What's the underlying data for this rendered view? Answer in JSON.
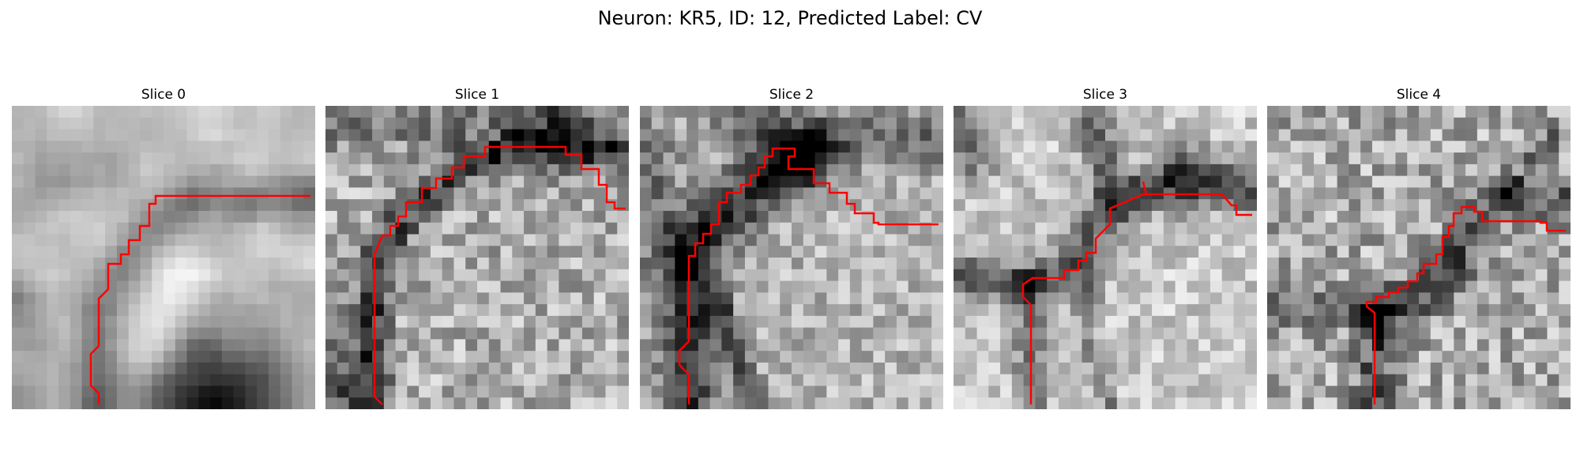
{
  "figure": {
    "title": "Neuron: KR5, ID: 12, Predicted Label: CV"
  },
  "colors": {
    "trace": "#ff0000",
    "background": "#ffffff"
  },
  "panels": [
    {
      "title": "Slice 0",
      "image": "grayscale microscopy patch with membrane trace"
    },
    {
      "title": "Slice 1",
      "image": "grayscale microscopy patch with membrane trace"
    },
    {
      "title": "Slice 2",
      "image": "grayscale microscopy patch with membrane trace"
    },
    {
      "title": "Slice 3",
      "image": "grayscale microscopy patch with membrane trace"
    },
    {
      "title": "Slice 4",
      "image": "grayscale microscopy patch with membrane trace"
    }
  ]
}
